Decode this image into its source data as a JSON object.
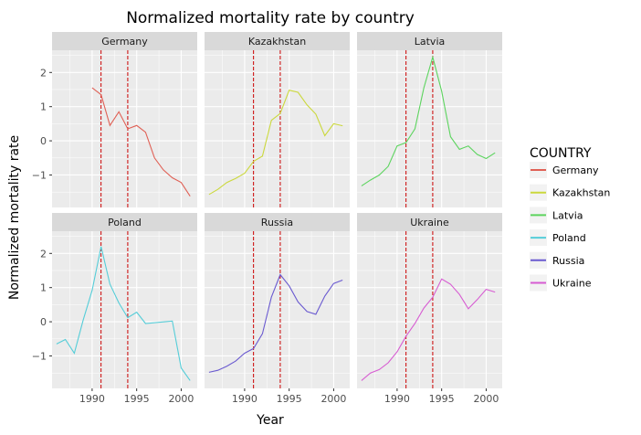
{
  "chart_data": {
    "type": "line",
    "title": "Normalized mortality rate by country",
    "xlabel": "Year",
    "ylabel": "Normalized mortality rate",
    "xlim": [
      1985.5,
      2001.8
    ],
    "ylim": [
      -1.95,
      2.65
    ],
    "x_ticks": [
      1990,
      1995,
      2000
    ],
    "y_ticks": [
      -1,
      0,
      1,
      2
    ],
    "reference_lines": [
      1991,
      1994
    ],
    "reference_line_color": "#cc0000",
    "panel_background": "#ebebeb",
    "strip_background": "#d9d9d9",
    "grid": true,
    "facet_layout": "2x3",
    "legend": {
      "title": "COUNTRY",
      "position": "right"
    },
    "series": [
      {
        "name": "Germany",
        "color": "#e06055",
        "x": [
          1990,
          1991,
          1992,
          1993,
          1994,
          1995,
          1996,
          1997,
          1998,
          1999,
          2000,
          2001
        ],
        "y": [
          1.55,
          1.35,
          0.45,
          0.85,
          0.35,
          0.45,
          0.25,
          -0.5,
          -0.85,
          -1.08,
          -1.22,
          -1.62
        ]
      },
      {
        "name": "Kazakhstan",
        "color": "#cbd83c",
        "x": [
          1986,
          1987,
          1988,
          1989,
          1990,
          1991,
          1992,
          1993,
          1994,
          1995,
          1996,
          1997,
          1998,
          1999,
          2000,
          2001
        ],
        "y": [
          -1.57,
          -1.42,
          -1.22,
          -1.1,
          -0.95,
          -0.6,
          -0.45,
          0.6,
          0.8,
          1.48,
          1.42,
          1.05,
          0.78,
          0.15,
          0.5,
          0.44
        ]
      },
      {
        "name": "Latvia",
        "color": "#5cd45e",
        "x": [
          1986,
          1987,
          1988,
          1989,
          1990,
          1991,
          1992,
          1993,
          1994,
          1995,
          1996,
          1997,
          1998,
          1999,
          2000,
          2001
        ],
        "y": [
          -1.32,
          -1.15,
          -1.0,
          -0.75,
          -0.15,
          -0.05,
          0.35,
          1.55,
          2.45,
          1.45,
          0.12,
          -0.25,
          -0.15,
          -0.4,
          -0.52,
          -0.35
        ]
      },
      {
        "name": "Poland",
        "color": "#55cdd8",
        "x": [
          1986,
          1987,
          1988,
          1989,
          1990,
          1991,
          1992,
          1993,
          1994,
          1995,
          1996,
          1999,
          2000,
          2001
        ],
        "y": [
          -0.65,
          -0.52,
          -0.92,
          0.05,
          0.92,
          2.2,
          1.1,
          0.55,
          0.12,
          0.28,
          -0.05,
          0.02,
          -1.35,
          -1.72
        ]
      },
      {
        "name": "Russia",
        "color": "#6a5ad0",
        "x": [
          1986,
          1987,
          1988,
          1989,
          1990,
          1991,
          1992,
          1993,
          1994,
          1995,
          1996,
          1997,
          1998,
          1999,
          2000,
          2001
        ],
        "y": [
          -1.48,
          -1.42,
          -1.3,
          -1.15,
          -0.92,
          -0.78,
          -0.35,
          0.72,
          1.38,
          1.05,
          0.58,
          0.3,
          0.22,
          0.75,
          1.12,
          1.22
        ]
      },
      {
        "name": "Ukraine",
        "color": "#d75cd2",
        "x": [
          1986,
          1987,
          1988,
          1989,
          1990,
          1991,
          1992,
          1993,
          1994,
          1995,
          1996,
          1997,
          1998,
          1999,
          2000,
          2001
        ],
        "y": [
          -1.72,
          -1.5,
          -1.4,
          -1.2,
          -0.88,
          -0.42,
          -0.05,
          0.4,
          0.72,
          1.25,
          1.1,
          0.8,
          0.38,
          0.65,
          0.95,
          0.87
        ]
      }
    ]
  }
}
